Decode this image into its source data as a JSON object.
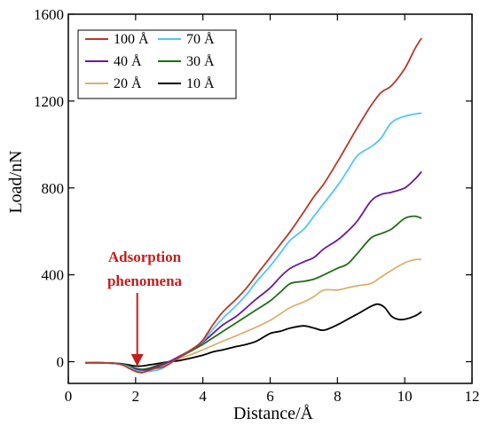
{
  "chart_data": {
    "type": "line",
    "xlabel": "Distance/Å",
    "ylabel": "Load/nN",
    "xlim": [
      0,
      12
    ],
    "ylim": [
      -100,
      1600
    ],
    "xticks": [
      0,
      2,
      4,
      6,
      8,
      10,
      12
    ],
    "yticks": [
      0,
      400,
      800,
      1200,
      1600
    ],
    "grid": false,
    "legend_position": "top-left",
    "annotation": {
      "lines": [
        "Adsorption",
        "phenomena"
      ],
      "x": 2.05,
      "y": -30,
      "color": "#c0201e"
    },
    "series": [
      {
        "name": "100 Å",
        "color": "#b8382a",
        "points": [
          [
            0.5,
            -5
          ],
          [
            1.0,
            -5
          ],
          [
            1.5,
            -10
          ],
          [
            1.8,
            -30
          ],
          [
            2.0,
            -45
          ],
          [
            2.2,
            -50
          ],
          [
            2.4,
            -40
          ],
          [
            2.6,
            -30
          ],
          [
            2.8,
            -25
          ],
          [
            3.0,
            -10
          ],
          [
            3.2,
            10
          ],
          [
            3.5,
            40
          ],
          [
            3.8,
            70
          ],
          [
            4.0,
            100
          ],
          [
            4.3,
            170
          ],
          [
            4.6,
            230
          ],
          [
            5.0,
            290
          ],
          [
            5.3,
            340
          ],
          [
            5.6,
            400
          ],
          [
            6.0,
            480
          ],
          [
            6.3,
            540
          ],
          [
            6.6,
            600
          ],
          [
            7.0,
            690
          ],
          [
            7.3,
            760
          ],
          [
            7.6,
            820
          ],
          [
            8.0,
            920
          ],
          [
            8.3,
            1000
          ],
          [
            8.6,
            1080
          ],
          [
            9.0,
            1180
          ],
          [
            9.3,
            1240
          ],
          [
            9.6,
            1270
          ],
          [
            10.0,
            1350
          ],
          [
            10.3,
            1440
          ],
          [
            10.5,
            1490
          ]
        ]
      },
      {
        "name": "70 Å",
        "color": "#4fc8ee",
        "points": [
          [
            0.5,
            -5
          ],
          [
            1.0,
            -5
          ],
          [
            1.5,
            -10
          ],
          [
            1.8,
            -25
          ],
          [
            2.0,
            -40
          ],
          [
            2.2,
            -45
          ],
          [
            2.4,
            -45
          ],
          [
            2.6,
            -40
          ],
          [
            2.8,
            -30
          ],
          [
            3.0,
            -10
          ],
          [
            3.3,
            20
          ],
          [
            3.6,
            50
          ],
          [
            4.0,
            95
          ],
          [
            4.3,
            150
          ],
          [
            4.6,
            200
          ],
          [
            5.0,
            260
          ],
          [
            5.3,
            310
          ],
          [
            5.6,
            370
          ],
          [
            6.0,
            440
          ],
          [
            6.3,
            500
          ],
          [
            6.6,
            560
          ],
          [
            7.0,
            610
          ],
          [
            7.3,
            670
          ],
          [
            7.6,
            730
          ],
          [
            8.0,
            810
          ],
          [
            8.3,
            880
          ],
          [
            8.6,
            950
          ],
          [
            9.0,
            990
          ],
          [
            9.3,
            1030
          ],
          [
            9.6,
            1100
          ],
          [
            10.0,
            1130
          ],
          [
            10.5,
            1145
          ]
        ]
      },
      {
        "name": "40 Å",
        "color": "#6a1b9a",
        "points": [
          [
            0.5,
            -5
          ],
          [
            1.0,
            -5
          ],
          [
            1.5,
            -10
          ],
          [
            1.8,
            -25
          ],
          [
            2.0,
            -35
          ],
          [
            2.2,
            -40
          ],
          [
            2.4,
            -35
          ],
          [
            2.6,
            -25
          ],
          [
            2.8,
            -15
          ],
          [
            3.0,
            0
          ],
          [
            3.3,
            25
          ],
          [
            3.6,
            50
          ],
          [
            4.0,
            90
          ],
          [
            4.3,
            130
          ],
          [
            4.6,
            170
          ],
          [
            5.0,
            210
          ],
          [
            5.3,
            250
          ],
          [
            5.6,
            290
          ],
          [
            6.0,
            340
          ],
          [
            6.3,
            390
          ],
          [
            6.6,
            430
          ],
          [
            7.0,
            460
          ],
          [
            7.3,
            480
          ],
          [
            7.6,
            520
          ],
          [
            8.0,
            560
          ],
          [
            8.3,
            600
          ],
          [
            8.6,
            650
          ],
          [
            9.0,
            740
          ],
          [
            9.3,
            770
          ],
          [
            9.6,
            780
          ],
          [
            10.0,
            800
          ],
          [
            10.3,
            840
          ],
          [
            10.5,
            875
          ]
        ]
      },
      {
        "name": "30 Å",
        "color": "#1e6e14",
        "points": [
          [
            0.5,
            -5
          ],
          [
            1.0,
            -5
          ],
          [
            1.5,
            -10
          ],
          [
            1.8,
            -20
          ],
          [
            2.0,
            -30
          ],
          [
            2.2,
            -35
          ],
          [
            2.4,
            -30
          ],
          [
            2.6,
            -20
          ],
          [
            2.8,
            -10
          ],
          [
            3.0,
            0
          ],
          [
            3.3,
            20
          ],
          [
            3.6,
            45
          ],
          [
            4.0,
            80
          ],
          [
            4.3,
            110
          ],
          [
            4.6,
            140
          ],
          [
            5.0,
            180
          ],
          [
            5.3,
            210
          ],
          [
            5.6,
            240
          ],
          [
            6.0,
            280
          ],
          [
            6.3,
            320
          ],
          [
            6.6,
            360
          ],
          [
            7.0,
            370
          ],
          [
            7.3,
            380
          ],
          [
            7.6,
            400
          ],
          [
            8.0,
            430
          ],
          [
            8.3,
            450
          ],
          [
            8.6,
            500
          ],
          [
            9.0,
            570
          ],
          [
            9.3,
            590
          ],
          [
            9.6,
            610
          ],
          [
            10.0,
            660
          ],
          [
            10.3,
            670
          ],
          [
            10.5,
            660
          ]
        ]
      },
      {
        "name": "20 Å",
        "color": "#d9b16e",
        "points": [
          [
            0.5,
            -5
          ],
          [
            1.0,
            -5
          ],
          [
            1.5,
            -10
          ],
          [
            1.8,
            -25
          ],
          [
            2.0,
            -35
          ],
          [
            2.2,
            -40
          ],
          [
            2.4,
            -30
          ],
          [
            2.6,
            -20
          ],
          [
            2.8,
            -10
          ],
          [
            3.0,
            0
          ],
          [
            3.3,
            15
          ],
          [
            3.6,
            30
          ],
          [
            4.0,
            55
          ],
          [
            4.3,
            75
          ],
          [
            4.6,
            95
          ],
          [
            5.0,
            120
          ],
          [
            5.3,
            140
          ],
          [
            5.6,
            160
          ],
          [
            6.0,
            190
          ],
          [
            6.3,
            220
          ],
          [
            6.6,
            250
          ],
          [
            7.0,
            275
          ],
          [
            7.3,
            300
          ],
          [
            7.6,
            330
          ],
          [
            8.0,
            330
          ],
          [
            8.3,
            340
          ],
          [
            8.6,
            350
          ],
          [
            9.0,
            360
          ],
          [
            9.3,
            390
          ],
          [
            9.6,
            420
          ],
          [
            10.0,
            455
          ],
          [
            10.3,
            470
          ],
          [
            10.5,
            470
          ]
        ]
      },
      {
        "name": "10 Å",
        "color": "#000000",
        "points": [
          [
            0.5,
            -5
          ],
          [
            1.0,
            -5
          ],
          [
            1.5,
            -8
          ],
          [
            1.8,
            -15
          ],
          [
            2.0,
            -20
          ],
          [
            2.2,
            -20
          ],
          [
            2.4,
            -15
          ],
          [
            2.6,
            -10
          ],
          [
            2.8,
            -5
          ],
          [
            3.0,
            0
          ],
          [
            3.3,
            5
          ],
          [
            3.6,
            15
          ],
          [
            4.0,
            30
          ],
          [
            4.3,
            45
          ],
          [
            4.6,
            55
          ],
          [
            5.0,
            70
          ],
          [
            5.3,
            80
          ],
          [
            5.6,
            95
          ],
          [
            6.0,
            130
          ],
          [
            6.3,
            140
          ],
          [
            6.6,
            155
          ],
          [
            7.0,
            165
          ],
          [
            7.3,
            155
          ],
          [
            7.6,
            145
          ],
          [
            8.0,
            170
          ],
          [
            8.3,
            195
          ],
          [
            8.6,
            220
          ],
          [
            9.0,
            255
          ],
          [
            9.2,
            265
          ],
          [
            9.4,
            250
          ],
          [
            9.6,
            210
          ],
          [
            9.8,
            195
          ],
          [
            10.0,
            195
          ],
          [
            10.3,
            210
          ],
          [
            10.5,
            230
          ]
        ]
      }
    ]
  }
}
